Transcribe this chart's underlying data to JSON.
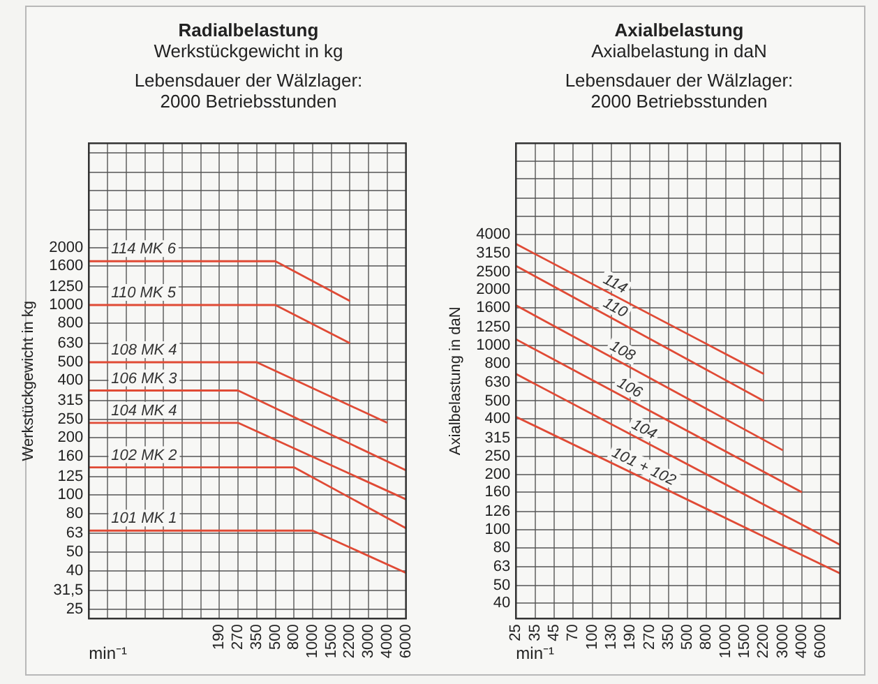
{
  "chart_data": [
    {
      "type": "line",
      "title": "Radialbelastung",
      "subtitle": "Werkstückgewicht in kg",
      "annotations": [
        "Lebensdauer der Wälzlager:",
        "2000 Betriebsstunden"
      ],
      "xlabel": "min⁻¹",
      "ylabel": "Werkstückgewicht in kg",
      "log": "y",
      "grid": true,
      "legend": false,
      "marker": "none",
      "line_style": "solid",
      "categories": [
        null,
        null,
        null,
        null,
        null,
        null,
        null,
        "190",
        "270",
        "350",
        "500",
        "800",
        "1000",
        "1500",
        "2200",
        "3000",
        "4000",
        "6000"
      ],
      "ylim": [
        22.4,
        7100
      ],
      "yticks": [
        {
          "value": 25,
          "label": "25"
        },
        {
          "value": 31.5,
          "label": "31,5"
        },
        40,
        50,
        63,
        80,
        100,
        125,
        160,
        200,
        250,
        315,
        400,
        500,
        630,
        800,
        1000,
        1250,
        1600,
        2000,
        {
          "value": 2500,
          "label": null
        },
        {
          "value": 3150,
          "label": null
        },
        {
          "value": 4000,
          "label": null
        },
        {
          "value": 5000,
          "label": null
        },
        {
          "value": 6300,
          "label": null
        }
      ],
      "series": [
        {
          "name": "114 MK 6",
          "color": "#e04a35",
          "values": [
            1700,
            null,
            null,
            null,
            null,
            null,
            null,
            null,
            null,
            null,
            1700,
            null,
            null,
            null,
            1050,
            null,
            null,
            null
          ]
        },
        {
          "name": "110 MK 5",
          "color": "#e04a35",
          "values": [
            1000,
            null,
            null,
            null,
            null,
            null,
            null,
            null,
            null,
            null,
            1000,
            null,
            null,
            null,
            630,
            null,
            null,
            null
          ]
        },
        {
          "name": "108 MK 4",
          "color": "#e04a35",
          "values": [
            500,
            null,
            null,
            null,
            null,
            null,
            null,
            null,
            null,
            500,
            null,
            null,
            null,
            null,
            null,
            null,
            240,
            null
          ]
        },
        {
          "name": "106 MK 3",
          "color": "#e04a35",
          "values": [
            355,
            null,
            null,
            null,
            null,
            null,
            null,
            null,
            355,
            null,
            null,
            null,
            null,
            null,
            null,
            null,
            null,
            135
          ]
        },
        {
          "name": "104 MK 4",
          "color": "#e04a35",
          "values": [
            240,
            null,
            null,
            null,
            null,
            null,
            null,
            null,
            240,
            null,
            null,
            null,
            null,
            null,
            null,
            null,
            null,
            95
          ]
        },
        {
          "name": "102 MK 2",
          "color": "#e04a35",
          "values": [
            140,
            null,
            null,
            null,
            null,
            null,
            null,
            null,
            null,
            null,
            null,
            140,
            null,
            null,
            null,
            null,
            null,
            67
          ]
        },
        {
          "name": "101 MK 1",
          "color": "#e04a35",
          "values": [
            65,
            null,
            null,
            null,
            null,
            null,
            null,
            null,
            null,
            null,
            null,
            null,
            65,
            null,
            null,
            null,
            null,
            39
          ]
        }
      ]
    },
    {
      "type": "line",
      "title": "Axialbelastung",
      "subtitle": "Axialbelastung in daN",
      "annotations": [
        "Lebensdauer der Wälzlager:",
        "2000 Betriebsstunden"
      ],
      "xlabel": "min⁻¹",
      "ylabel": "Axialbelastung in daN",
      "log": "y",
      "grid": true,
      "legend": false,
      "marker": "none",
      "line_style": "solid",
      "categories": [
        "25",
        "35",
        "45",
        "70",
        "100",
        "130",
        "190",
        "270",
        "350",
        "500",
        "800",
        "1000",
        "1500",
        "2200",
        "3000",
        "4000",
        "6000",
        null
      ],
      "ylim": [
        33,
        12500
      ],
      "yticks": [
        40,
        50,
        63,
        80,
        100,
        126,
        160,
        200,
        250,
        315,
        400,
        500,
        630,
        800,
        1000,
        1250,
        1600,
        2000,
        2500,
        3150,
        4000,
        {
          "value": 5000,
          "label": null
        },
        {
          "value": 6300,
          "label": null
        },
        {
          "value": 8000,
          "label": null
        },
        {
          "value": 10000,
          "label": null
        }
      ],
      "series": [
        {
          "name": "114",
          "color": "#e04a35",
          "values": [
            3550,
            null,
            null,
            null,
            null,
            null,
            null,
            null,
            null,
            null,
            null,
            null,
            null,
            700,
            null,
            null,
            null,
            null
          ]
        },
        {
          "name": "110",
          "color": "#e04a35",
          "values": [
            2700,
            null,
            null,
            null,
            null,
            null,
            null,
            null,
            null,
            null,
            null,
            null,
            null,
            500,
            null,
            null,
            null,
            null
          ]
        },
        {
          "name": "108",
          "color": "#e04a35",
          "values": [
            1650,
            null,
            null,
            null,
            null,
            null,
            null,
            null,
            null,
            null,
            null,
            null,
            null,
            null,
            270,
            null,
            null,
            null
          ]
        },
        {
          "name": "106",
          "color": "#e04a35",
          "values": [
            1080,
            null,
            null,
            null,
            null,
            null,
            null,
            null,
            null,
            null,
            null,
            null,
            null,
            null,
            null,
            160,
            null,
            null
          ]
        },
        {
          "name": "104",
          "color": "#e04a35",
          "values": [
            700,
            null,
            null,
            null,
            null,
            null,
            null,
            null,
            null,
            null,
            null,
            null,
            null,
            null,
            null,
            null,
            null,
            83
          ]
        },
        {
          "name": "101 + 102",
          "color": "#e04a35",
          "values": [
            410,
            null,
            null,
            null,
            null,
            null,
            null,
            null,
            null,
            null,
            null,
            null,
            null,
            null,
            null,
            null,
            null,
            58
          ]
        }
      ]
    }
  ]
}
